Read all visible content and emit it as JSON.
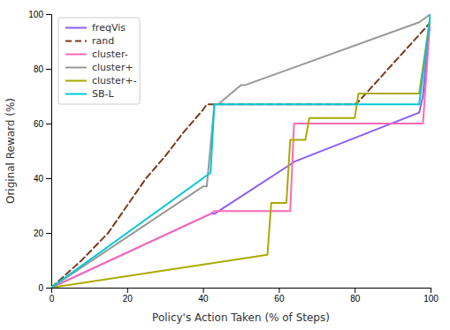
{
  "chart_data": {
    "type": "line",
    "xlabel": "Policy's Action Taken (% of Steps)",
    "ylabel": "Original Reward (%)",
    "xlim": [
      0,
      100
    ],
    "ylim": [
      0,
      100
    ],
    "xticks": [
      0,
      20,
      40,
      60,
      80,
      100
    ],
    "yticks": [
      0,
      20,
      40,
      60,
      80,
      100
    ],
    "grid": false,
    "legend": "upper left",
    "series": [
      {
        "name": "freqVis",
        "color": "#8b5cf6",
        "line_style": "solid",
        "x": [
          0,
          42,
          43,
          63,
          64,
          97,
          98,
          100
        ],
        "values": [
          0,
          27,
          27,
          45,
          46,
          64,
          70,
          100
        ]
      },
      {
        "name": "rand",
        "color": "#7b3a1a",
        "line_style": "dashed",
        "x": [
          0,
          8,
          15,
          20,
          25,
          30,
          35,
          40,
          41,
          58,
          64,
          80,
          81,
          100
        ],
        "values": [
          0,
          10,
          20,
          30,
          40,
          48,
          57,
          65,
          67,
          67,
          67,
          67,
          68,
          97
        ]
      },
      {
        "name": "cluster-",
        "color": "#ff69b4",
        "line_style": "solid",
        "x": [
          0,
          42,
          43,
          63,
          64,
          97,
          98,
          100
        ],
        "values": [
          0,
          27,
          28,
          28,
          60,
          60,
          60,
          100
        ]
      },
      {
        "name": "cluster+",
        "color": "#999999",
        "line_style": "solid",
        "x": [
          0,
          40,
          41,
          43,
          44,
          50,
          51,
          97,
          100
        ],
        "values": [
          0,
          37,
          37,
          67,
          67,
          74,
          74,
          97,
          100
        ]
      },
      {
        "name": "cluster+-",
        "color": "#aaaa00",
        "line_style": "solid",
        "x": [
          0,
          57,
          58,
          62,
          63,
          67,
          68,
          80,
          81,
          97,
          100
        ],
        "values": [
          0,
          12,
          31,
          31,
          54,
          54,
          62,
          62,
          71,
          71,
          100
        ]
      },
      {
        "name": "SB-L",
        "color": "#00c8d4",
        "line_style": "solid",
        "x": [
          0,
          42,
          43,
          58,
          59,
          97,
          100
        ],
        "values": [
          0,
          42,
          67,
          67,
          67,
          67,
          100
        ]
      }
    ]
  }
}
